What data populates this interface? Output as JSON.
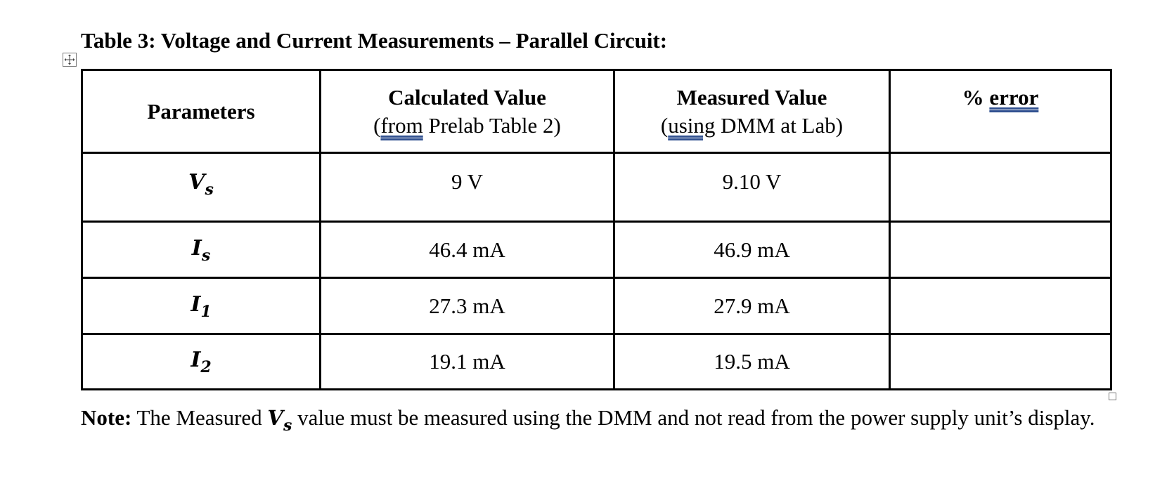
{
  "title": "Table 3: Voltage and Current Measurements – Parallel Circuit:",
  "table": {
    "headers": {
      "parameters": "Parameters",
      "calculated": {
        "label": "Calculated Value",
        "sub_open": "(",
        "sub_underlined": "from",
        "sub_rest": " Prelab Table 2)"
      },
      "measured": {
        "label": "Measured Value",
        "sub_open": "(",
        "sub_underlined": "using",
        "sub_rest": " DMM at Lab)"
      },
      "error": {
        "prefix": "% ",
        "underlined": "error"
      }
    },
    "rows": [
      {
        "symbol": "V",
        "subscript": "s",
        "calculated": "9 V",
        "measured": "9.10 V",
        "error": ""
      },
      {
        "symbol": "I",
        "subscript": "s",
        "calculated": "46.4 mA",
        "measured": "46.9 mA",
        "error": ""
      },
      {
        "symbol": "I",
        "subscript": "1",
        "calculated": "27.3 mA",
        "measured": "27.9 mA",
        "error": ""
      },
      {
        "symbol": "I",
        "subscript": "2",
        "calculated": "19.1 mA",
        "measured": "19.5 mA",
        "error": ""
      }
    ]
  },
  "note": {
    "label": "Note:",
    "text_before": " The Measured ",
    "symbol": "V",
    "subscript": "s",
    "text_after": " value must be measured using the DMM and not read from the power supply unit’s display."
  },
  "colors": {
    "text": "#000000",
    "spellcheck_underline": "#2f4f8f",
    "handle_border": "#7a7a7a"
  },
  "icons": {
    "table_move_handle": "four-way-arrow-icon",
    "table_resize_handle": "square-resize-icon"
  }
}
